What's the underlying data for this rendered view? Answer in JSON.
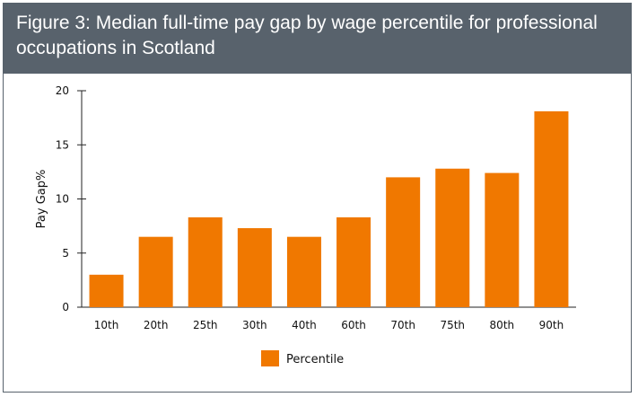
{
  "header": {
    "title": "Figure 3: Median full-time pay gap by wage percentile for professional occupations in Scotland"
  },
  "colors": {
    "header_bg": "#58626c",
    "bar": "#f07800",
    "axis": "#222222"
  },
  "chart_data": {
    "type": "bar",
    "title": "Figure 3: Median full-time pay gap by wage percentile for professional occupations in Scotland",
    "xlabel": "",
    "ylabel": "Pay Gap%",
    "categories": [
      "10th",
      "20th",
      "25th",
      "30th",
      "40th",
      "60th",
      "70th",
      "75th",
      "80th",
      "90th"
    ],
    "series": [
      {
        "name": "Percentile",
        "values": [
          3,
          6.5,
          8.3,
          7.3,
          6.5,
          8.3,
          12,
          12.8,
          12.4,
          18.1
        ]
      }
    ],
    "ylim": [
      0,
      20
    ],
    "yticks": [
      0,
      5,
      10,
      15,
      20
    ],
    "grid": false,
    "legend": "bottom-center"
  }
}
